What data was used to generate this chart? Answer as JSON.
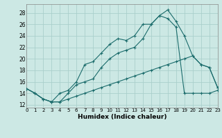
{
  "xlabel": "Humidex (Indice chaleur)",
  "xlim": [
    0,
    23
  ],
  "ylim": [
    11.5,
    29.5
  ],
  "xticks": [
    0,
    1,
    2,
    3,
    4,
    5,
    6,
    7,
    8,
    9,
    10,
    11,
    12,
    13,
    14,
    15,
    16,
    17,
    18,
    19,
    20,
    21,
    22,
    23
  ],
  "yticks": [
    12,
    14,
    16,
    18,
    20,
    22,
    24,
    26,
    28
  ],
  "bg_color": "#cce8e4",
  "line_color": "#1a6b6b",
  "grid_color": "#aacfcb",
  "line1_x": [
    0,
    1,
    2,
    3,
    4,
    5,
    6,
    7,
    8,
    9,
    10,
    11,
    12,
    13,
    14,
    15,
    16,
    17,
    18,
    19,
    20,
    21,
    22,
    23
  ],
  "line1_y": [
    14.8,
    14.0,
    13.0,
    12.5,
    14.0,
    14.5,
    16.0,
    19.0,
    19.5,
    21.0,
    22.5,
    23.5,
    23.2,
    24.0,
    26.0,
    26.0,
    27.5,
    28.5,
    26.5,
    24.0,
    20.5,
    19.0,
    18.5,
    15.0
  ],
  "line2_x": [
    0,
    1,
    2,
    3,
    4,
    5,
    6,
    7,
    8,
    9,
    10,
    11,
    12,
    13,
    14,
    15,
    16,
    17,
    18,
    19,
    20,
    21,
    22,
    23
  ],
  "line2_y": [
    14.8,
    14.0,
    13.0,
    12.5,
    12.5,
    14.0,
    15.5,
    16.0,
    16.5,
    18.5,
    20.0,
    21.0,
    21.5,
    22.0,
    23.5,
    26.0,
    27.5,
    27.0,
    25.5,
    14.0,
    14.0,
    14.0,
    14.0,
    14.5
  ],
  "line3_x": [
    0,
    1,
    2,
    3,
    4,
    5,
    6,
    7,
    8,
    9,
    10,
    11,
    12,
    13,
    14,
    15,
    16,
    17,
    18,
    19,
    20,
    21,
    22,
    23
  ],
  "line3_y": [
    14.8,
    14.0,
    13.0,
    12.5,
    12.5,
    13.0,
    13.5,
    14.0,
    14.5,
    15.0,
    15.5,
    16.0,
    16.5,
    17.0,
    17.5,
    18.0,
    18.5,
    19.0,
    19.5,
    20.0,
    20.5,
    19.0,
    18.5,
    15.0
  ]
}
